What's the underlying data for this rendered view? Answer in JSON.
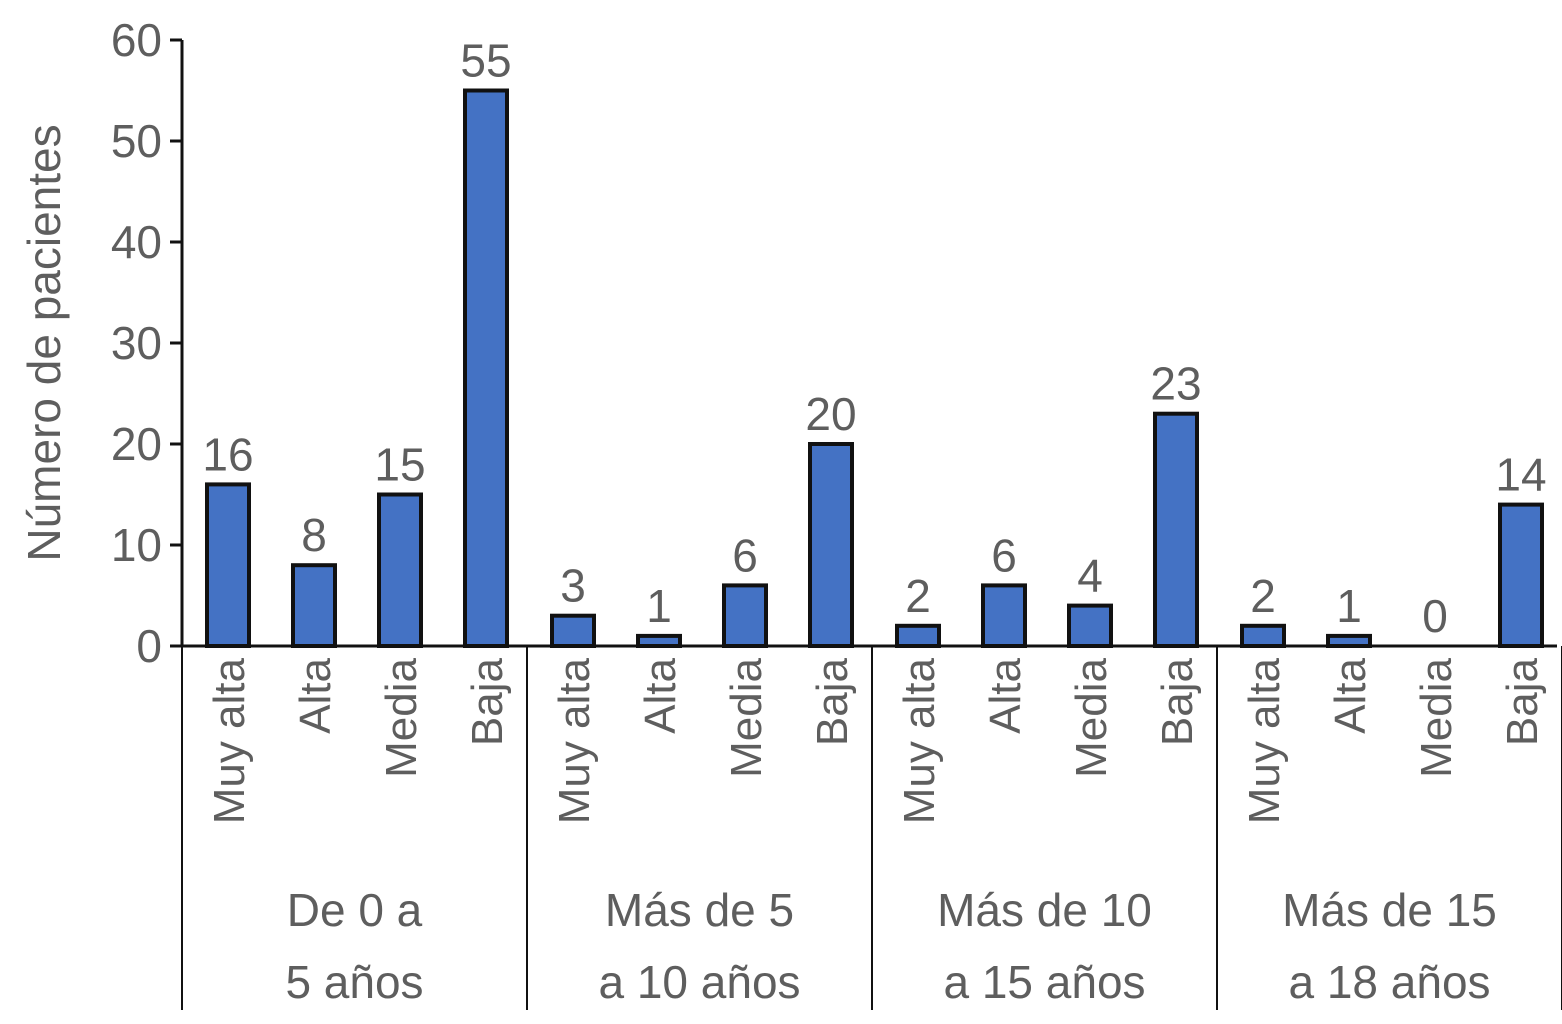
{
  "chart_data": {
    "type": "bar",
    "ylabel": "Número de pacientes",
    "ylim": [
      0,
      60
    ],
    "yticks": [
      0,
      10,
      20,
      30,
      40,
      50,
      60
    ],
    "grid": false,
    "bar_color": "#4472c4",
    "bar_stroke": "#111111",
    "text_color": "#5e5e5e",
    "groups": [
      {
        "label_lines": [
          "De 0 a",
          "5 años"
        ],
        "categories": [
          "Muy alta",
          "Alta",
          "Media",
          "Baja"
        ],
        "values": [
          16,
          8,
          15,
          55
        ]
      },
      {
        "label_lines": [
          "Más de 5",
          "a 10 años"
        ],
        "categories": [
          "Muy alta",
          "Alta",
          "Media",
          "Baja"
        ],
        "values": [
          3,
          1,
          6,
          20
        ]
      },
      {
        "label_lines": [
          "Más de 10",
          "a 15 años"
        ],
        "categories": [
          "Muy alta",
          "Alta",
          "Media",
          "Baja"
        ],
        "values": [
          2,
          6,
          4,
          23
        ]
      },
      {
        "label_lines": [
          "Más de 15",
          "a 18 años"
        ],
        "categories": [
          "Muy alta",
          "Alta",
          "Media",
          "Baja"
        ],
        "values": [
          2,
          1,
          0,
          14
        ]
      }
    ]
  }
}
